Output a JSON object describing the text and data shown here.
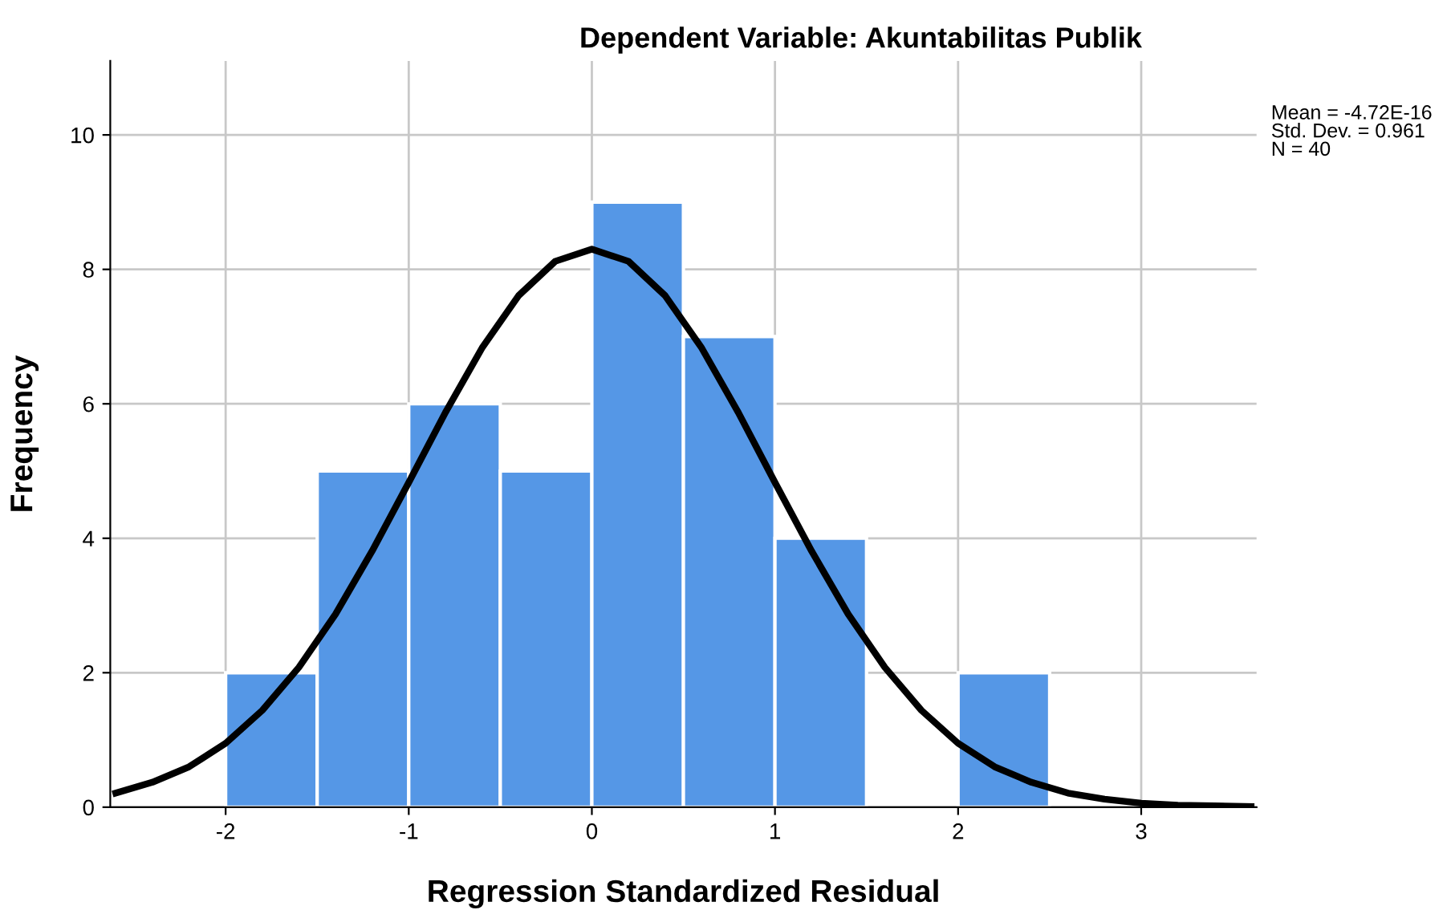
{
  "chart_data": {
    "type": "histogram",
    "title": "Dependent Variable: Akuntabilitas Publik",
    "xlabel": "Regression Standardized Residual",
    "ylabel": "Frequency",
    "bins": [
      -2,
      -1.5,
      -1,
      -0.5,
      0,
      0.5,
      1,
      1.5,
      2,
      2.5
    ],
    "values": [
      2,
      5,
      6,
      5,
      9,
      7,
      4,
      0,
      2
    ],
    "color": "#5597e6",
    "series": [
      {
        "type": "line",
        "color": "#000000",
        "x": [
          -2.6,
          -2.4,
          -2.2,
          -2.0,
          -1.8,
          -1.6,
          -1.4,
          -1.2,
          -1.0,
          -0.8,
          -0.6,
          -0.4,
          -0.2,
          0,
          0.2,
          0.4,
          0.6,
          0.8,
          1.0,
          1.2,
          1.4,
          1.6,
          1.8,
          2.0,
          2.2,
          2.4,
          2.6,
          2.8,
          3.0,
          3.2,
          3.4,
          3.6
        ],
        "values": [
          0.21,
          0.37,
          0.6,
          0.95,
          1.44,
          2.08,
          2.87,
          3.81,
          4.83,
          5.87,
          6.83,
          7.61,
          8.12,
          8.3,
          8.12,
          7.61,
          6.83,
          5.87,
          4.83,
          3.81,
          2.87,
          2.08,
          1.44,
          0.95,
          0.6,
          0.37,
          0.21,
          0.12,
          0.06,
          0.03,
          0.02,
          0.01
        ]
      }
    ],
    "xlim": [
      -2.63,
      3.63
    ],
    "xticks": [
      -2,
      -1,
      0,
      1,
      2,
      3
    ],
    "ylim": [
      0,
      11.1
    ],
    "yticks": [
      0,
      2,
      4,
      6,
      8,
      10
    ],
    "grid": true,
    "annotations": [
      "Mean = -4.72E-16",
      "Std. Dev. = 0.961",
      "N = 40"
    ]
  }
}
